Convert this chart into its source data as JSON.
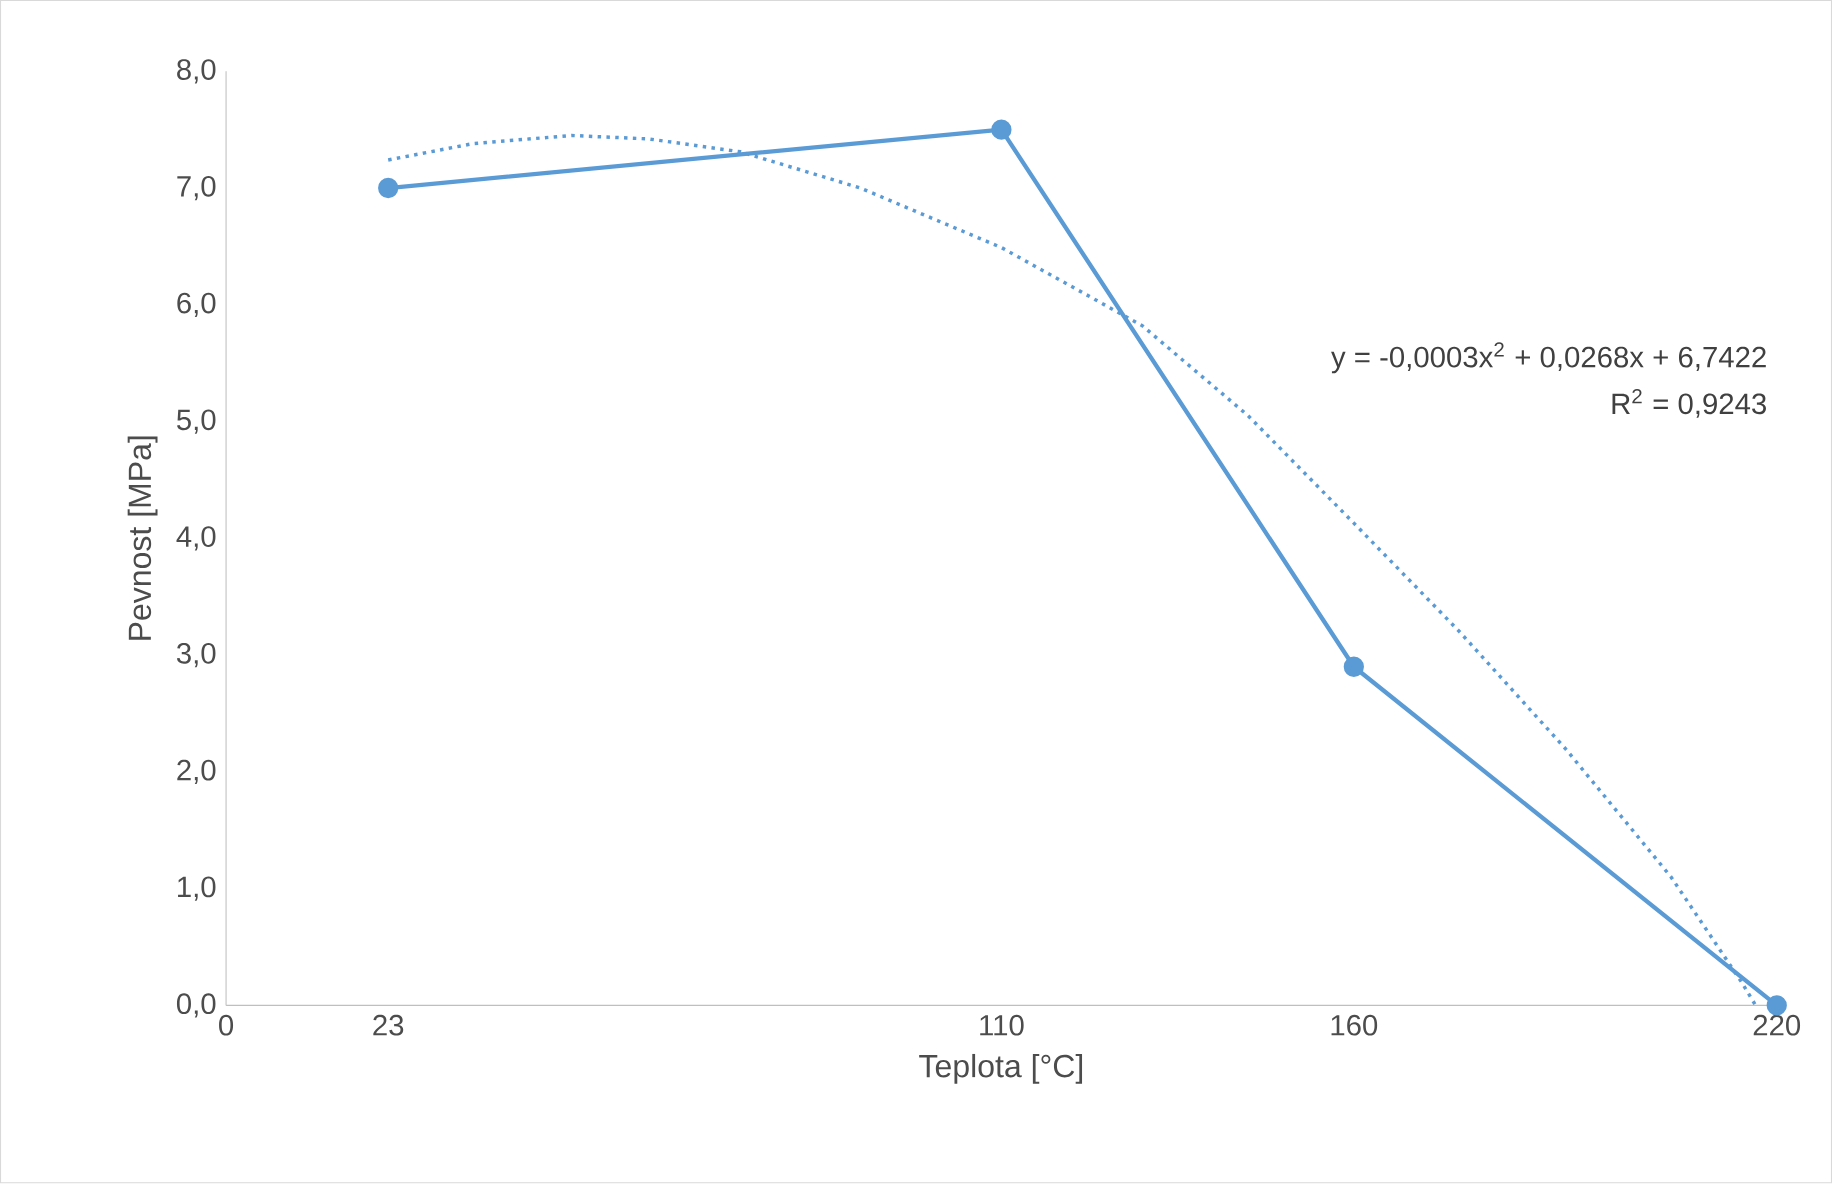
{
  "chart_data": {
    "type": "line",
    "xlabel": "Teplota [°C]",
    "ylabel": "Pevnost [MPa]",
    "xlim": [
      0,
      220
    ],
    "xticks": [
      0,
      23,
      110,
      160,
      220
    ],
    "ylim": [
      0,
      8
    ],
    "yticks": [
      {
        "value": 0,
        "label": "0,0"
      },
      {
        "value": 1,
        "label": "1,0"
      },
      {
        "value": 2,
        "label": "2,0"
      },
      {
        "value": 3,
        "label": "3,0"
      },
      {
        "value": 4,
        "label": "4,0"
      },
      {
        "value": 5,
        "label": "5,0"
      },
      {
        "value": 6,
        "label": "6,0"
      },
      {
        "value": 7,
        "label": "7,0"
      },
      {
        "value": 8,
        "label": "8,0"
      }
    ],
    "grid": false,
    "series": [
      {
        "color": "#5b9bd5",
        "x": [
          23,
          110,
          160,
          220
        ],
        "values": [
          7.0,
          7.5,
          2.9,
          0.0
        ],
        "marker": "circle",
        "line_style": "solid"
      },
      {
        "color": "#5b9bd5",
        "x": [
          23,
          35,
          49,
          60,
          73,
          90,
          110,
          130,
          145,
          160,
          175,
          190,
          205,
          215,
          217
        ],
        "values": [
          7.24,
          7.38,
          7.45,
          7.42,
          7.31,
          7.0,
          6.49,
          5.82,
          5.05,
          4.13,
          3.2,
          2.2,
          1.1,
          0.2,
          0.0
        ],
        "marker": "none",
        "line_style": "dotted"
      }
    ],
    "annotations": [
      "y = -0,0003x$^{2}$ + 0,0268x + 6,7422",
      "R$^{2}$ = 0,9243"
    ]
  }
}
